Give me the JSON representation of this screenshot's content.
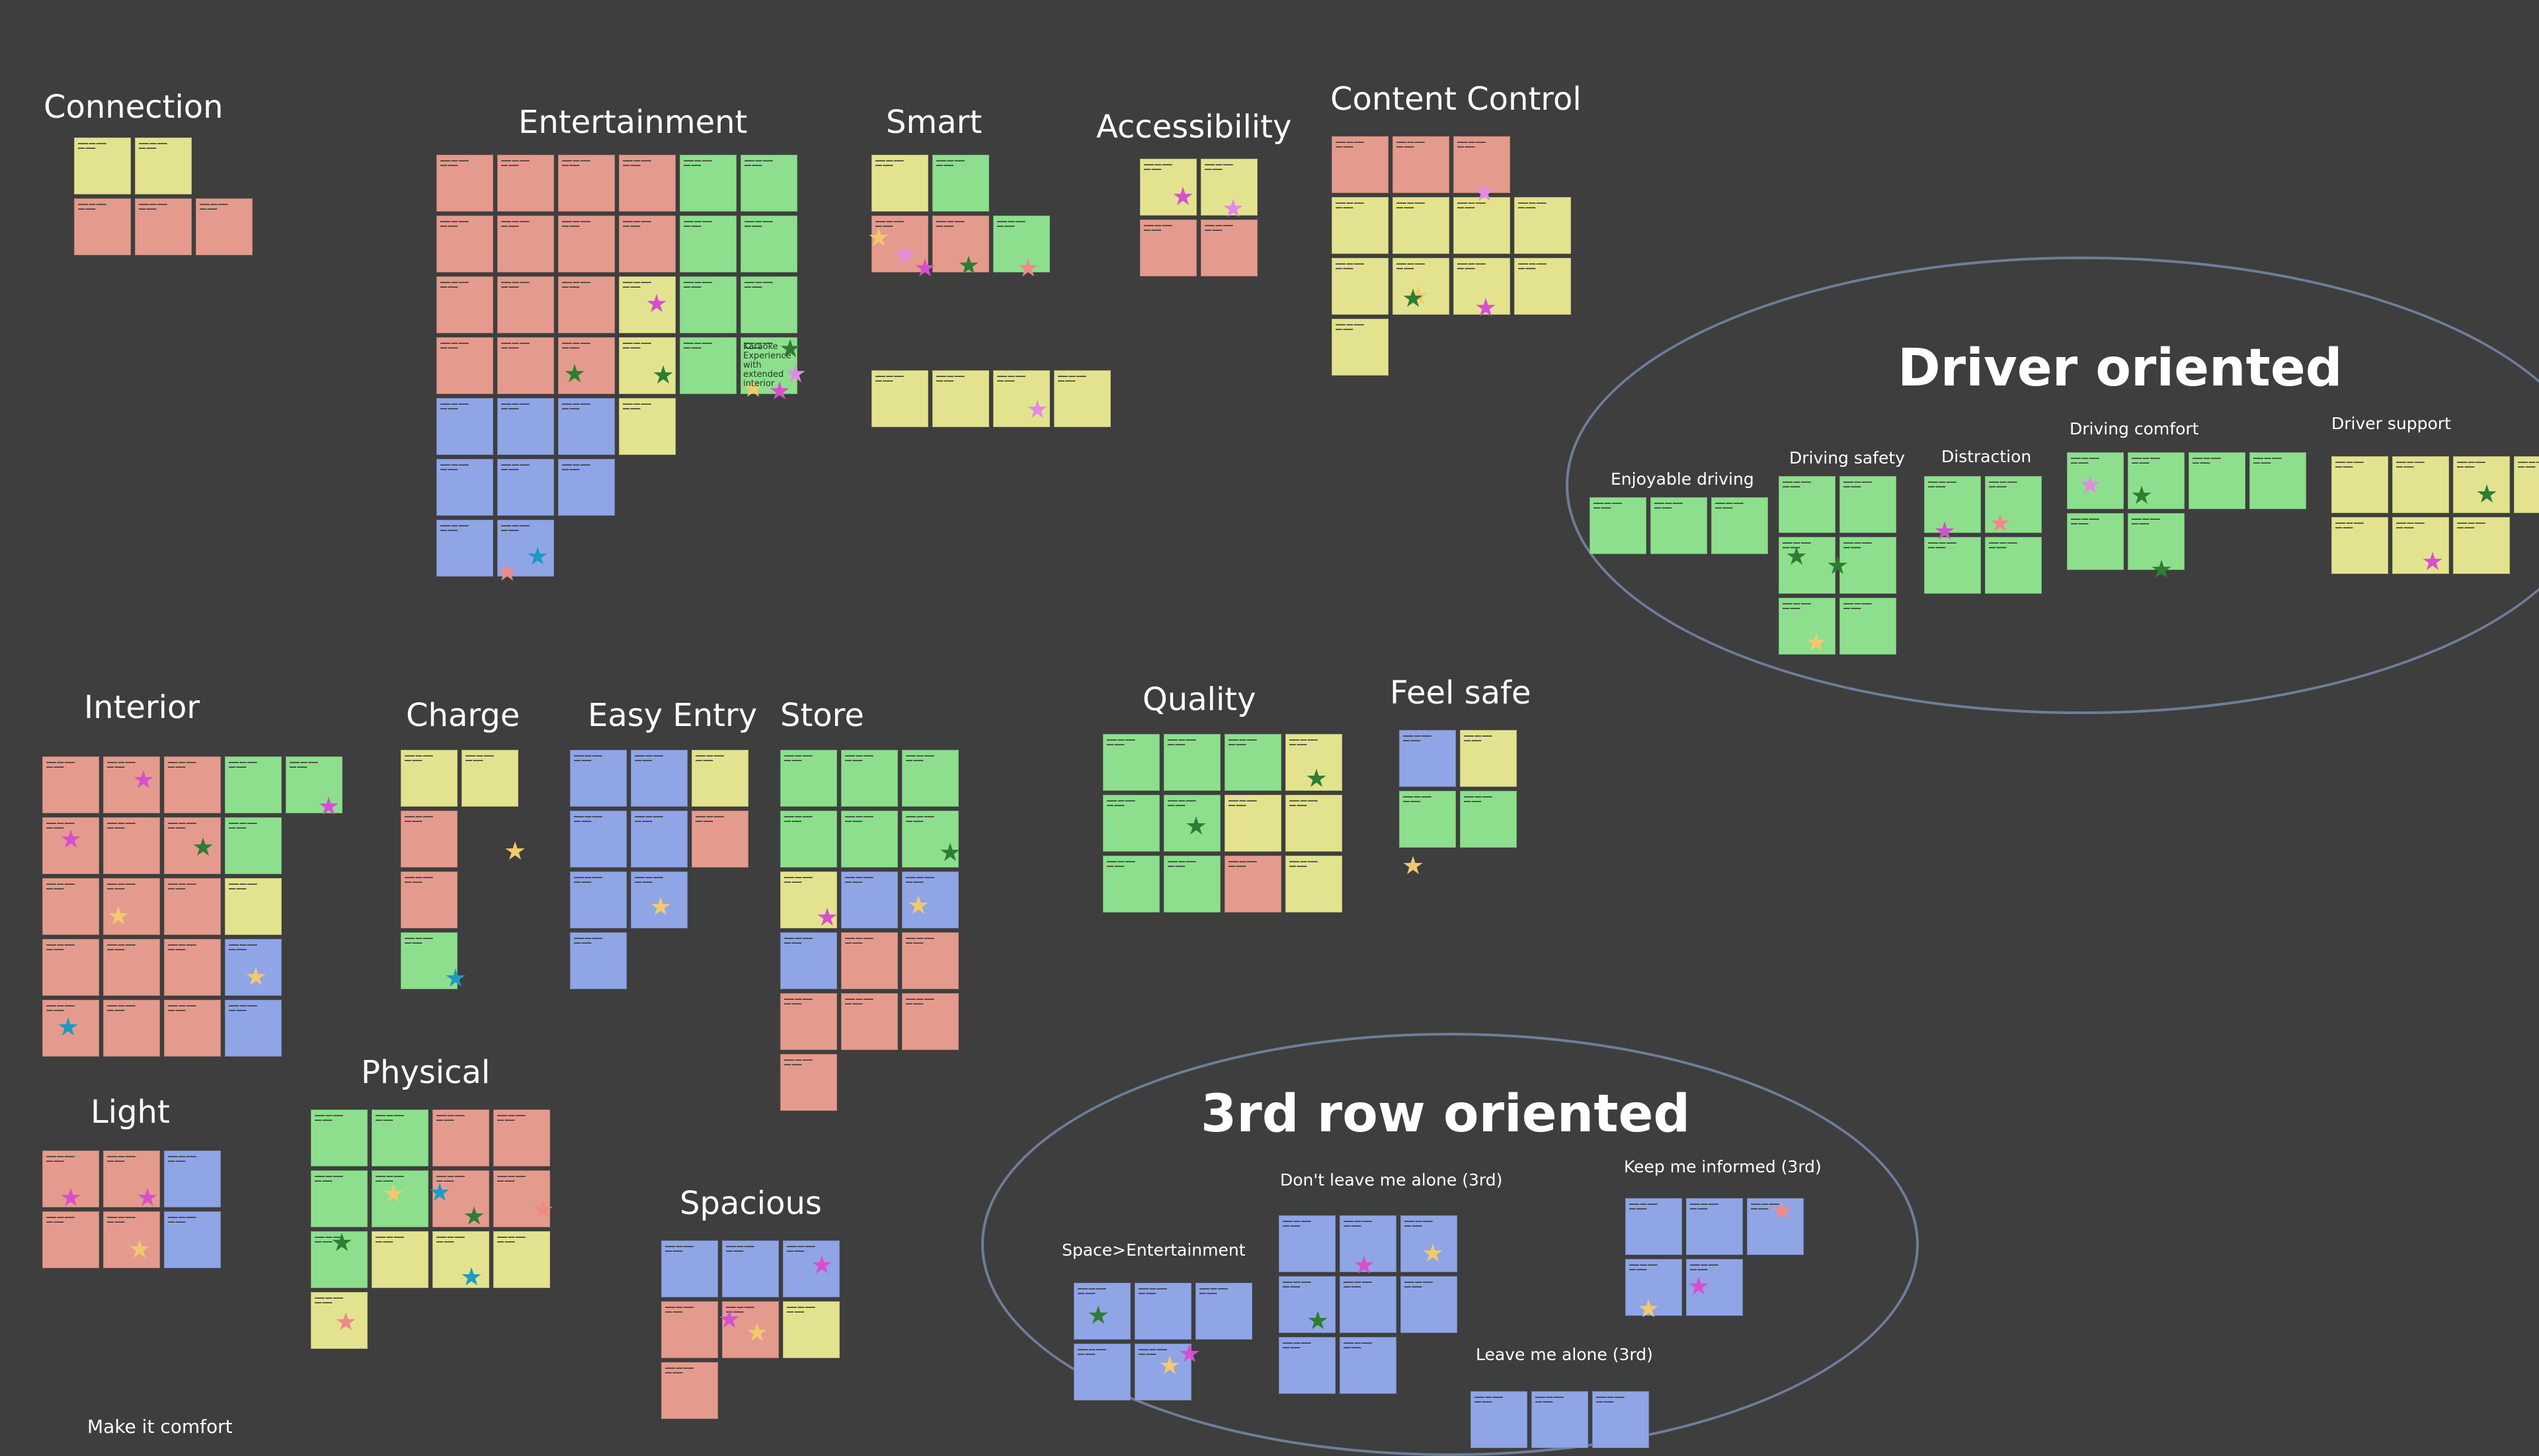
{
  "clusters": {
    "connection": "Connection",
    "entertainment": "Entertainment",
    "smart": "Smart",
    "accessibility": "Accessibility",
    "content_control": "Content Control",
    "interior": "Interior",
    "charge": "Charge",
    "easy_entry": "Easy Entry",
    "store": "Store",
    "quality": "Quality",
    "feel_safe": "Feel safe",
    "light": "Light",
    "physical": "Physical",
    "spacious": "Spacious",
    "make_it_comfort": "Make it comfort"
  },
  "driver_oriented": {
    "title": "Driver oriented",
    "groups": {
      "enjoyable_driving": "Enjoyable driving",
      "driving_safety": "Driving safety",
      "distraction": "Distraction",
      "driving_comfort": "Driving comfort",
      "driver_support": "Driver support"
    }
  },
  "third_row_oriented": {
    "title": "3rd row oriented",
    "groups": {
      "dont_leave_me_alone": "Don't leave me alone (3rd)",
      "keep_me_informed": "Keep me informed (3rd)",
      "space_entertainment": "Space>Entertainment",
      "leave_me_alone": "Leave me alone (3rd)"
    }
  },
  "karaoke_note": "Karaoke Experience with extended interior",
  "colors": {
    "background": "#3e3e3e",
    "sticky_red": "#e49b8d",
    "sticky_yellow": "#e3e38f",
    "sticky_green": "#8ddf8d",
    "sticky_blue": "#8fa5e6",
    "ellipse": "#6f7d99",
    "star_magenta": "#d64fcf",
    "star_green": "#2e7d32",
    "star_yellow": "#f1c96e",
    "star_teal": "#1e9ac0",
    "star_pink": "#f08a8a",
    "star_lavender": "#e48ae6"
  }
}
